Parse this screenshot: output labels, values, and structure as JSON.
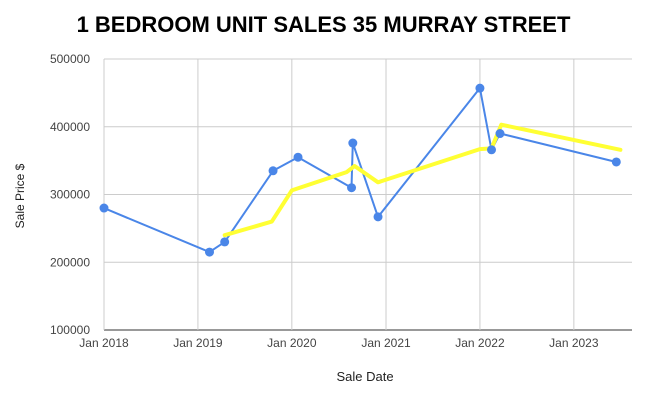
{
  "chart_data": {
    "type": "line",
    "title": "1 BEDROOM UNIT SALES 35 MURRAY STREET",
    "xlabel": "Sale Date",
    "ylabel": "Sale Price $",
    "ylim": [
      100000,
      500000
    ],
    "yticks": [
      "100000",
      "200000",
      "300000",
      "400000",
      "500000"
    ],
    "xticks": [
      "Jan 2018",
      "Jan 2019",
      "Jan 2020",
      "Jan 2021",
      "Jan 2022",
      "Jan 2023"
    ],
    "grid": true,
    "series": [
      {
        "color": "#4a86e8",
        "markers": true,
        "points": [
          {
            "x": "2018-01-01",
            "y": 280000
          },
          {
            "x": "2019-02-15",
            "y": 215000
          },
          {
            "x": "2019-04-15",
            "y": 230000
          },
          {
            "x": "2019-10-20",
            "y": 335000
          },
          {
            "x": "2020-01-25",
            "y": 355000
          },
          {
            "x": "2020-08-20",
            "y": 310000
          },
          {
            "x": "2020-08-25",
            "y": 376000
          },
          {
            "x": "2020-12-01",
            "y": 267000
          },
          {
            "x": "2022-01-01",
            "y": 457000
          },
          {
            "x": "2022-02-15",
            "y": 366000
          },
          {
            "x": "2022-03-20",
            "y": 390000
          },
          {
            "x": "2023-06-15",
            "y": 348000
          }
        ]
      },
      {
        "color": "#ffff33",
        "markers": false,
        "points": [
          {
            "x": "2019-04-15",
            "y": 240000
          },
          {
            "x": "2019-10-15",
            "y": 260000
          },
          {
            "x": "2020-01-01",
            "y": 306000
          },
          {
            "x": "2020-08-01",
            "y": 333000
          },
          {
            "x": "2020-09-01",
            "y": 342000
          },
          {
            "x": "2020-12-01",
            "y": 318000
          },
          {
            "x": "2022-01-01",
            "y": 367000
          },
          {
            "x": "2022-02-15",
            "y": 368000
          },
          {
            "x": "2022-03-25",
            "y": 403000
          },
          {
            "x": "2023-07-01",
            "y": 366000
          }
        ]
      }
    ]
  }
}
